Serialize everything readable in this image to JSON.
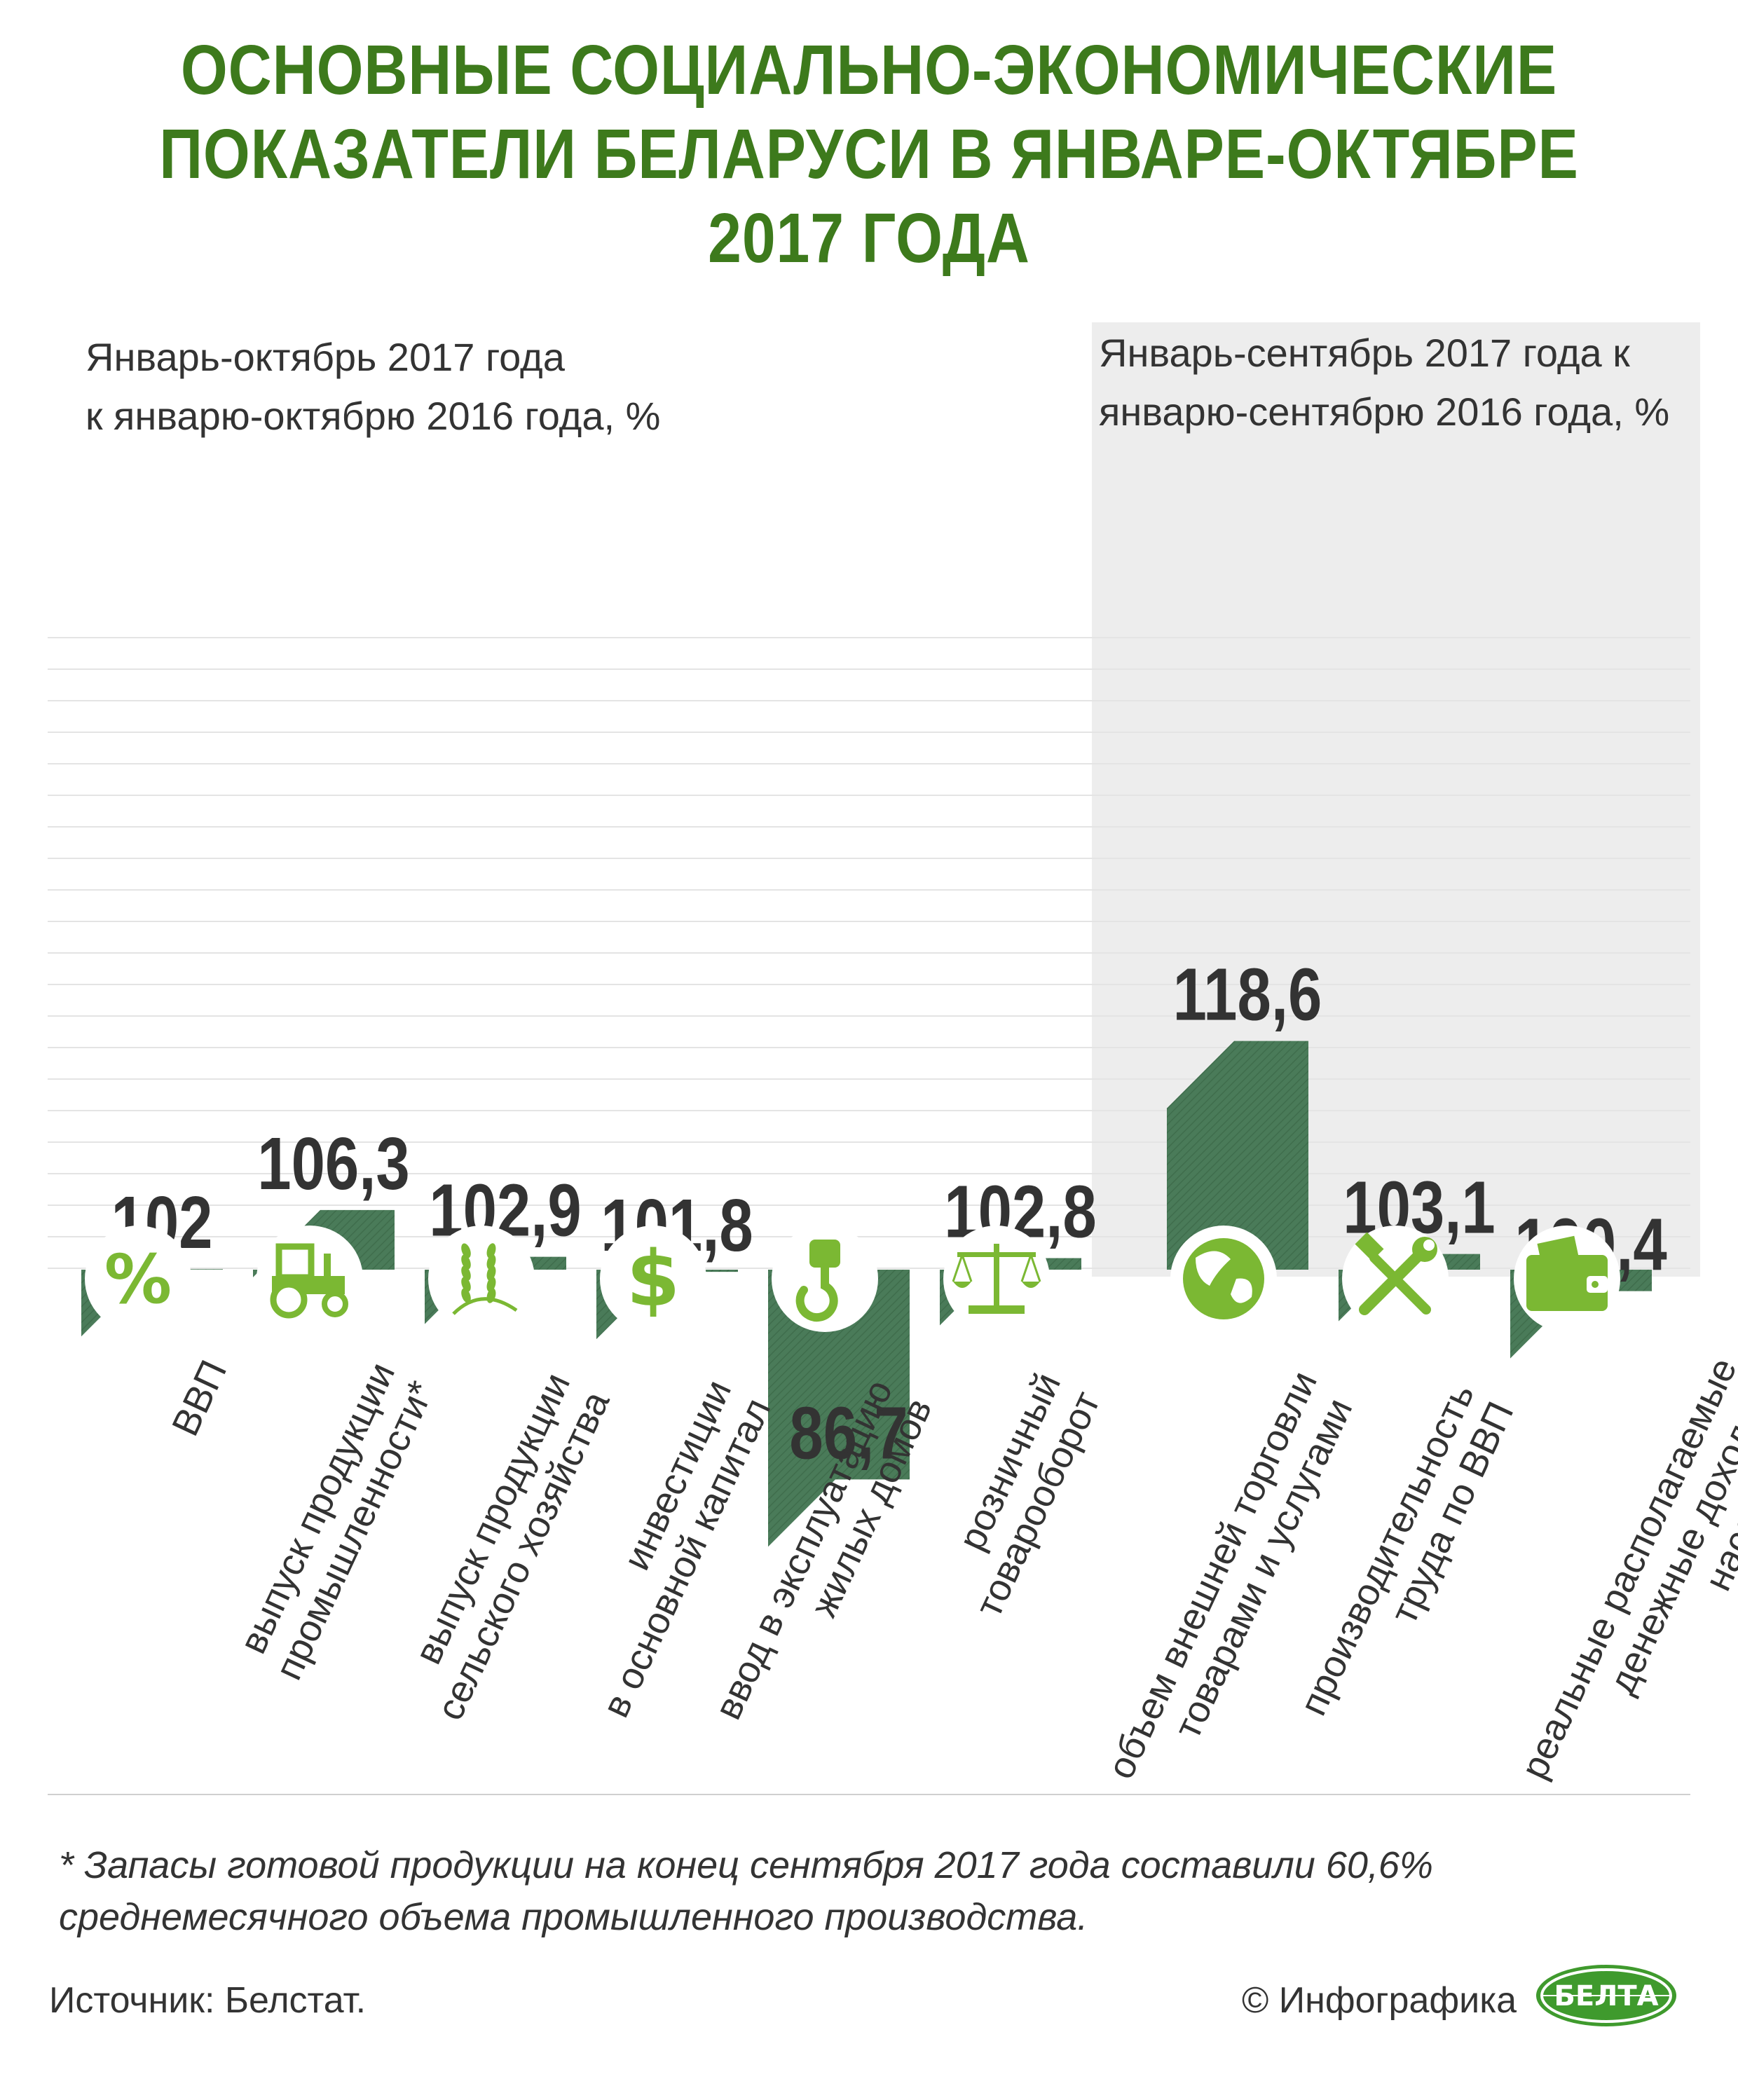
{
  "title": {
    "line1": "ОСНОВНЫЕ СОЦИАЛЬНО-ЭКОНОМИЧЕСКИЕ",
    "line2": "ПОКАЗАТЕЛИ БЕЛАРУСИ В ЯНВАРЕ-ОКТЯБРЕ",
    "line3": "2017 ГОДА"
  },
  "subtitles": {
    "left_line1": "Январь-октябрь 2017 года",
    "left_line2": "к январю-октябрю 2016 года, %",
    "right_line1": "Январь-сентябрь 2017 года к",
    "right_line2": "январю-сентябрю 2016 года, %"
  },
  "colors": {
    "bar": "#4a7b59",
    "icon_circle": "#ffffff",
    "icon": "#7bb833",
    "title": "#3d7a1c",
    "panel": "#ededed"
  },
  "chart_data": {
    "type": "bar",
    "title": "Основные социально-экономические показатели Беларуси в январе-октябре 2017 года",
    "ylabel": "%",
    "ylim": [
      0,
      130
    ],
    "grid": true,
    "categories": [
      "ВВП",
      "выпуск продукции промышленности*",
      "выпуск продукции сельского хозяйства",
      "инвестиции в основной капитал",
      "ввод в эксплуатацию жилых домов",
      "розничный товарооборот",
      "объем внешней торговли товарами и услугами",
      "производительность труда по ВВП",
      "реальные располагаемые денежные доходы населения"
    ],
    "values": [
      102,
      106.3,
      102.9,
      101.8,
      86.7,
      102.8,
      118.6,
      103.1,
      100.4
    ],
    "value_labels": [
      "102",
      "106,3",
      "102,9",
      "101,8",
      "86,7",
      "102,8",
      "118,6",
      "103,1",
      "100,4"
    ],
    "category_lines": [
      [
        "ВВП"
      ],
      [
        "выпуск продукции",
        "промышленности*"
      ],
      [
        "выпуск продукции",
        "сельского хозяйства"
      ],
      [
        "инвестиции",
        "в основной капитал"
      ],
      [
        "ввод в эксплуатацию",
        "жилых домов"
      ],
      [
        "розничный",
        "товарооборот"
      ],
      [
        "объем внешней торговли",
        "товарами и услугами"
      ],
      [
        "производительность",
        "труда по ВВП"
      ],
      [
        "реальные располагаемые",
        "денежные доходы",
        "населения"
      ]
    ],
    "icons": [
      "percent-icon",
      "tractor-icon",
      "wheat-icon",
      "dollar-icon",
      "crane-hook-icon",
      "scales-icon",
      "globe-icon",
      "tools-icon",
      "wallet-icon"
    ],
    "groups": [
      {
        "name": "Январь-октябрь 2017 года к январю-октябрю 2016 года, %",
        "count": 6
      },
      {
        "name": "Январь-сентябрь 2017 года к январю-сентябрю 2016 года, %",
        "count": 3
      }
    ]
  },
  "footnote": {
    "line1": "* Запасы готовой продукции на конец сентября 2017 года составили 60,6%",
    "line2": "среднемесячного объема промышленного производства."
  },
  "source": "Источник:  Белстат.",
  "credit": "© Инфографика",
  "logo_text": "БЕЛТА"
}
